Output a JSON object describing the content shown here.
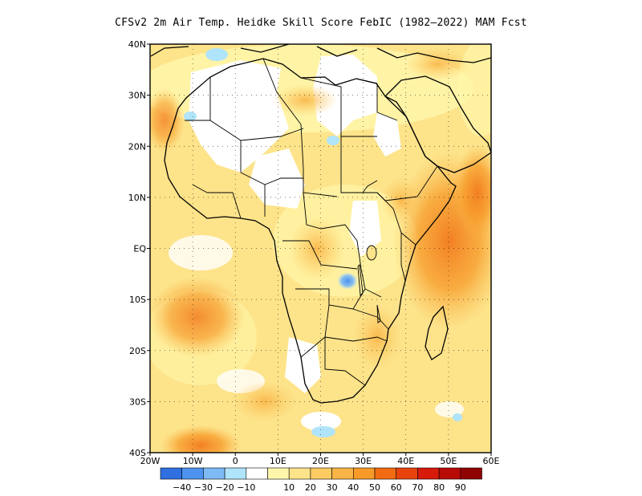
{
  "title": "CFSv2  2m Air Temp. Heidke Skill Score FebIC (1982–2022) MAM Fcst",
  "map": {
    "lon_range": [
      -20,
      60
    ],
    "lat_range": [
      -40,
      40
    ],
    "x_ticks": [
      {
        "lon": -20,
        "label": "20W"
      },
      {
        "lon": -10,
        "label": "10W"
      },
      {
        "lon": 0,
        "label": "0"
      },
      {
        "lon": 10,
        "label": "10E"
      },
      {
        "lon": 20,
        "label": "20E"
      },
      {
        "lon": 30,
        "label": "30E"
      },
      {
        "lon": 40,
        "label": "40E"
      },
      {
        "lon": 50,
        "label": "50E"
      },
      {
        "lon": 60,
        "label": "60E"
      }
    ],
    "y_ticks": [
      {
        "lat": 40,
        "label": "40N"
      },
      {
        "lat": 30,
        "label": "30N"
      },
      {
        "lat": 20,
        "label": "20N"
      },
      {
        "lat": 10,
        "label": "10N"
      },
      {
        "lat": 0,
        "label": "EQ"
      },
      {
        "lat": -10,
        "label": "10S"
      },
      {
        "lat": -20,
        "label": "20S"
      },
      {
        "lat": -30,
        "label": "30S"
      },
      {
        "lat": -40,
        "label": "40S"
      }
    ],
    "grid": "dotted"
  },
  "colorbar": {
    "colors": [
      "#2f6fe0",
      "#4d93ef",
      "#7dbaf6",
      "#afe4fb",
      "#ffffff",
      "#fff6aa",
      "#fde38a",
      "#fccb62",
      "#f9b447",
      "#f79a28",
      "#f26b13",
      "#e9430d",
      "#d81a0a",
      "#b90b06",
      "#8f0303"
    ],
    "labels": [
      "−40",
      "−30",
      "−20",
      "−10",
      "10",
      "20",
      "30",
      "40",
      "50",
      "60",
      "70",
      "80",
      "90"
    ]
  }
}
